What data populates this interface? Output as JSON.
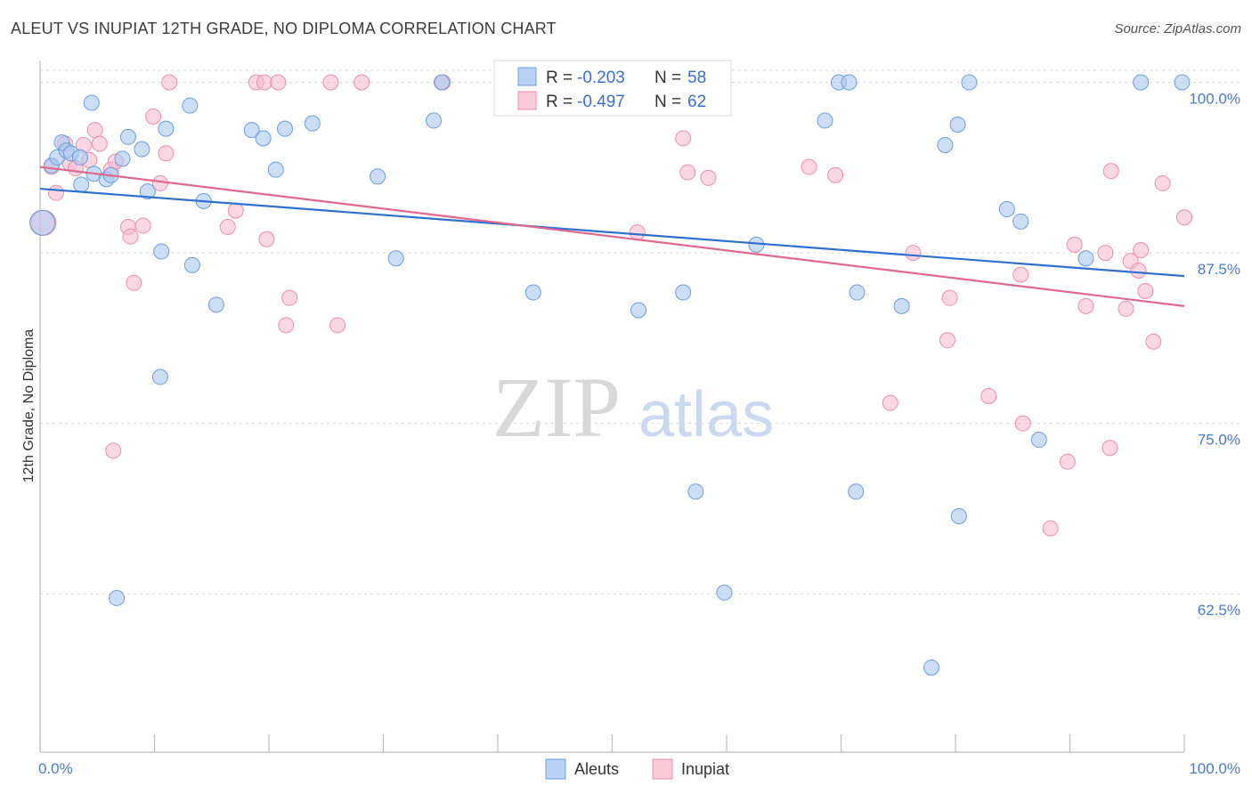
{
  "header": {
    "title": "ALEUT VS INUPIAT 12TH GRADE, NO DIPLOMA CORRELATION CHART",
    "source": "Source: ZipAtlas.com"
  },
  "legend": {
    "rows": [
      {
        "r_label": "R = ",
        "r_value": "-0.203",
        "n_label": "N = ",
        "n_value": "58"
      },
      {
        "r_label": "R = ",
        "r_value": "-0.497",
        "n_label": "N = ",
        "n_value": "62"
      }
    ]
  },
  "bottom_legend": [
    "Aleuts",
    "Inupiat"
  ],
  "watermark": {
    "zip": "ZIP",
    "atlas": "atlas"
  },
  "colors": {
    "aleuts_fill": "#a9c8f0",
    "aleuts_stroke": "#6d9de0",
    "aleuts_line": "#2f6fd0",
    "inupiat_fill": "#f7bdd0",
    "inupiat_stroke": "#ec8eab",
    "inupiat_line": "#e0688f",
    "tick_text": "#4a7cc9",
    "grid": "#d5d5d5"
  },
  "chart_data": {
    "type": "scatter",
    "title": "ALEUT VS INUPIAT 12TH GRADE, NO DIPLOMA CORRELATION CHART",
    "xlabel": "",
    "ylabel": "12th Grade, No Diploma",
    "xlim": [
      0,
      100
    ],
    "ylim": [
      50.9,
      101.6
    ],
    "x_tick_labels": [
      "0.0%",
      "100.0%"
    ],
    "y_ticks": [
      100,
      87.5,
      75,
      62.5
    ],
    "y_tick_labels": [
      "100.0%",
      "87.5%",
      "75.0%",
      "62.5%"
    ],
    "grid": true,
    "legend_position": "top-center",
    "series": [
      {
        "name": "Aleuts",
        "trend": {
          "x": [
            0,
            100
          ],
          "y": [
            92.2,
            85.8
          ]
        },
        "points": [
          {
            "x": 0.2,
            "y": 89.7,
            "big": true
          },
          {
            "x": 1.0,
            "y": 93.9
          },
          {
            "x": 1.5,
            "y": 94.5
          },
          {
            "x": 1.9,
            "y": 95.6
          },
          {
            "x": 2.3,
            "y": 95.0
          },
          {
            "x": 2.7,
            "y": 94.8
          },
          {
            "x": 3.5,
            "y": 94.5
          },
          {
            "x": 3.6,
            "y": 92.5
          },
          {
            "x": 4.5,
            "y": 98.5
          },
          {
            "x": 4.7,
            "y": 93.3
          },
          {
            "x": 5.8,
            "y": 92.9
          },
          {
            "x": 6.2,
            "y": 93.2
          },
          {
            "x": 7.2,
            "y": 94.4
          },
          {
            "x": 7.7,
            "y": 96.0
          },
          {
            "x": 8.9,
            "y": 95.1
          },
          {
            "x": 9.4,
            "y": 92.0
          },
          {
            "x": 10.6,
            "y": 87.6
          },
          {
            "x": 11.0,
            "y": 96.6
          },
          {
            "x": 13.1,
            "y": 98.3
          },
          {
            "x": 13.3,
            "y": 86.6
          },
          {
            "x": 14.3,
            "y": 91.3
          },
          {
            "x": 15.4,
            "y": 83.7
          },
          {
            "x": 18.5,
            "y": 96.5
          },
          {
            "x": 19.5,
            "y": 95.9
          },
          {
            "x": 20.6,
            "y": 93.6
          },
          {
            "x": 21.4,
            "y": 96.6
          },
          {
            "x": 23.8,
            "y": 97.0
          },
          {
            "x": 29.5,
            "y": 93.1
          },
          {
            "x": 31.1,
            "y": 87.1
          },
          {
            "x": 34.4,
            "y": 97.2
          },
          {
            "x": 35.1,
            "y": 100.0
          },
          {
            "x": 43.1,
            "y": 84.6
          },
          {
            "x": 52.3,
            "y": 83.3
          },
          {
            "x": 56.2,
            "y": 84.6
          },
          {
            "x": 56.8,
            "y": 100.0
          },
          {
            "x": 57.3,
            "y": 70.0
          },
          {
            "x": 59.8,
            "y": 62.6
          },
          {
            "x": 62.6,
            "y": 88.1
          },
          {
            "x": 68.6,
            "y": 97.2
          },
          {
            "x": 69.8,
            "y": 100.0
          },
          {
            "x": 70.7,
            "y": 100.0
          },
          {
            "x": 71.3,
            "y": 70.0
          },
          {
            "x": 71.4,
            "y": 84.6
          },
          {
            "x": 75.3,
            "y": 83.6
          },
          {
            "x": 77.9,
            "y": 57.1
          },
          {
            "x": 79.1,
            "y": 95.4
          },
          {
            "x": 80.2,
            "y": 96.9
          },
          {
            "x": 80.3,
            "y": 68.2
          },
          {
            "x": 81.2,
            "y": 100.0
          },
          {
            "x": 84.5,
            "y": 90.7
          },
          {
            "x": 85.7,
            "y": 89.8
          },
          {
            "x": 87.3,
            "y": 73.8
          },
          {
            "x": 91.4,
            "y": 87.1
          },
          {
            "x": 96.2,
            "y": 100.0
          },
          {
            "x": 99.8,
            "y": 100.0
          },
          {
            "x": 6.7,
            "y": 62.2
          },
          {
            "x": 10.5,
            "y": 78.4
          },
          {
            "x": 56.6,
            "y": 100.0
          }
        ]
      },
      {
        "name": "Inupiat",
        "trend": {
          "x": [
            0,
            100
          ],
          "y": [
            93.8,
            83.6
          ]
        },
        "points": [
          {
            "x": 0.3,
            "y": 89.7,
            "big": true
          },
          {
            "x": 1.0,
            "y": 93.8
          },
          {
            "x": 1.4,
            "y": 91.9
          },
          {
            "x": 2.2,
            "y": 95.5
          },
          {
            "x": 2.6,
            "y": 94.1
          },
          {
            "x": 3.1,
            "y": 93.7
          },
          {
            "x": 3.8,
            "y": 95.4
          },
          {
            "x": 4.3,
            "y": 94.3
          },
          {
            "x": 4.8,
            "y": 96.5
          },
          {
            "x": 5.2,
            "y": 95.5
          },
          {
            "x": 6.2,
            "y": 93.6
          },
          {
            "x": 6.4,
            "y": 73.0
          },
          {
            "x": 6.6,
            "y": 94.2
          },
          {
            "x": 7.7,
            "y": 89.4
          },
          {
            "x": 7.9,
            "y": 88.7
          },
          {
            "x": 8.2,
            "y": 85.3
          },
          {
            "x": 9.0,
            "y": 89.5
          },
          {
            "x": 9.9,
            "y": 97.5
          },
          {
            "x": 10.5,
            "y": 92.6
          },
          {
            "x": 11.0,
            "y": 94.8
          },
          {
            "x": 11.3,
            "y": 100.0
          },
          {
            "x": 16.4,
            "y": 89.4
          },
          {
            "x": 17.1,
            "y": 90.6
          },
          {
            "x": 18.9,
            "y": 100.0
          },
          {
            "x": 19.6,
            "y": 100.0
          },
          {
            "x": 19.8,
            "y": 88.5
          },
          {
            "x": 20.8,
            "y": 100.0
          },
          {
            "x": 21.5,
            "y": 82.2
          },
          {
            "x": 21.8,
            "y": 84.2
          },
          {
            "x": 25.4,
            "y": 100.0
          },
          {
            "x": 26.0,
            "y": 82.2
          },
          {
            "x": 28.1,
            "y": 100.0
          },
          {
            "x": 35.2,
            "y": 100.0
          },
          {
            "x": 47.2,
            "y": 100.0
          },
          {
            "x": 52.2,
            "y": 89.0
          },
          {
            "x": 56.2,
            "y": 95.9
          },
          {
            "x": 56.6,
            "y": 93.4
          },
          {
            "x": 58.4,
            "y": 93.0
          },
          {
            "x": 67.2,
            "y": 93.8
          },
          {
            "x": 69.5,
            "y": 93.2
          },
          {
            "x": 74.3,
            "y": 76.5
          },
          {
            "x": 76.3,
            "y": 87.5
          },
          {
            "x": 79.3,
            "y": 81.1
          },
          {
            "x": 79.5,
            "y": 84.2
          },
          {
            "x": 82.9,
            "y": 77.0
          },
          {
            "x": 85.7,
            "y": 85.9
          },
          {
            "x": 85.9,
            "y": 75.0
          },
          {
            "x": 88.3,
            "y": 67.3
          },
          {
            "x": 89.8,
            "y": 72.2
          },
          {
            "x": 90.4,
            "y": 88.1
          },
          {
            "x": 91.4,
            "y": 83.6
          },
          {
            "x": 93.1,
            "y": 87.5
          },
          {
            "x": 93.5,
            "y": 73.2
          },
          {
            "x": 93.6,
            "y": 93.5
          },
          {
            "x": 94.9,
            "y": 83.4
          },
          {
            "x": 95.3,
            "y": 86.9
          },
          {
            "x": 96.0,
            "y": 86.2
          },
          {
            "x": 96.2,
            "y": 87.7
          },
          {
            "x": 96.6,
            "y": 84.7
          },
          {
            "x": 97.3,
            "y": 81.0
          },
          {
            "x": 98.1,
            "y": 92.6
          },
          {
            "x": 100.0,
            "y": 90.1
          }
        ]
      }
    ]
  }
}
